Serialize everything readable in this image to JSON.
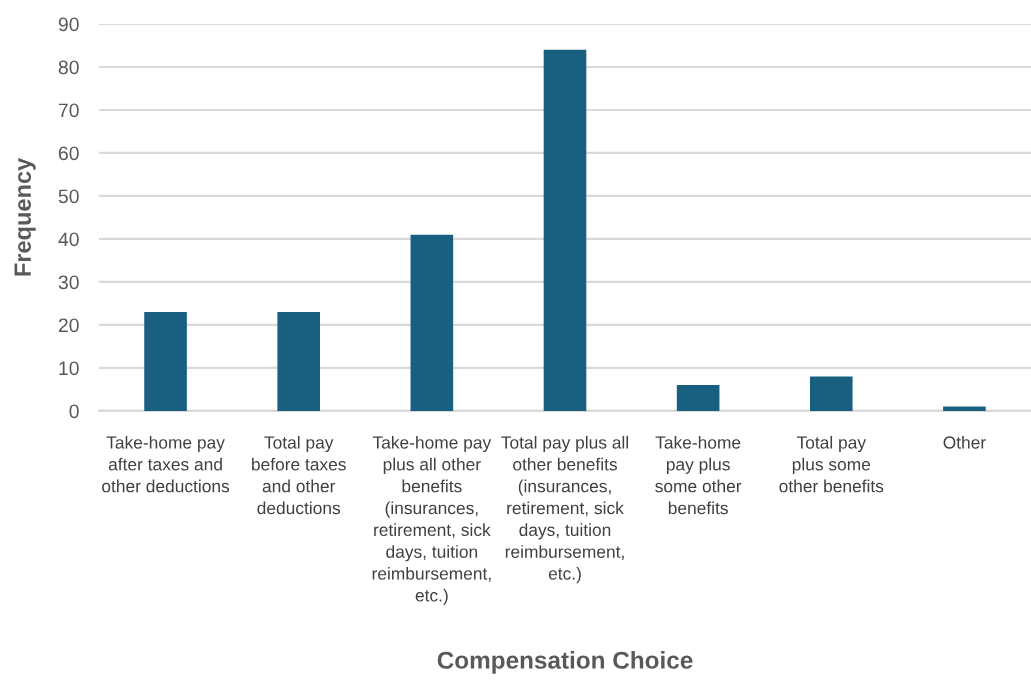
{
  "chart_data": {
    "type": "bar",
    "categories": [
      "Take-home pay\nafter taxes and\nother deductions",
      "Total pay\nbefore taxes\nand other\ndeductions",
      "Take-home pay\nplus all other\nbenefits\n(insurances,\nretirement, sick\ndays, tuition\nreimbursement,\netc.)",
      "Total pay plus all\nother benefits\n(insurances,\nretirement, sick\ndays, tuition\nreimbursement,\netc.)",
      "Take-home\npay plus\nsome other\nbenefits",
      "Total pay\nplus some\nother benefits",
      "Other"
    ],
    "values": [
      23,
      23,
      41,
      84,
      6,
      8,
      1
    ],
    "color": "#185f80",
    "xlabel": "Compensation Choice",
    "ylabel": "Frequency",
    "ylim": [
      0,
      90
    ],
    "yticks": [
      0,
      10,
      20,
      30,
      40,
      50,
      60,
      70,
      80,
      90
    ],
    "grid": "y",
    "legend": false
  }
}
